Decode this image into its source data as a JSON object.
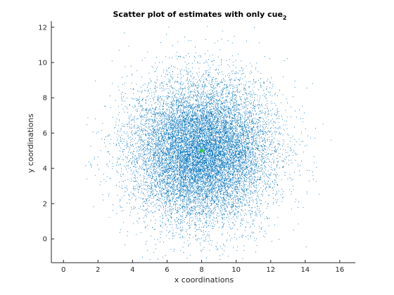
{
  "chart_data": {
    "type": "scatter",
    "title": "Scatter plot of estimates with only cue",
    "title_subscript": "2",
    "xlabel": "x coordinations",
    "ylabel": "y coordinations",
    "xlim": [
      -0.7,
      16.9
    ],
    "ylim": [
      -1.35,
      12.35
    ],
    "xticks": [
      0,
      2,
      4,
      6,
      8,
      10,
      12,
      14,
      16
    ],
    "yticks": [
      0,
      2,
      4,
      6,
      8,
      10,
      12
    ],
    "grid": false,
    "box": "left-bottom",
    "series": [
      {
        "marker": "point",
        "color": "#0072bd",
        "distribution": "approximately circular Gaussian cloud of many thousand estimate points",
        "center": [
          8,
          5
        ],
        "std": [
          2.0,
          2.0
        ],
        "extent_x": [
          1.2,
          15.5
        ],
        "extent_y": [
          -1.2,
          12.2
        ]
      }
    ],
    "true_location": {
      "x": 8,
      "y": 5,
      "color": "#33cc33"
    }
  }
}
